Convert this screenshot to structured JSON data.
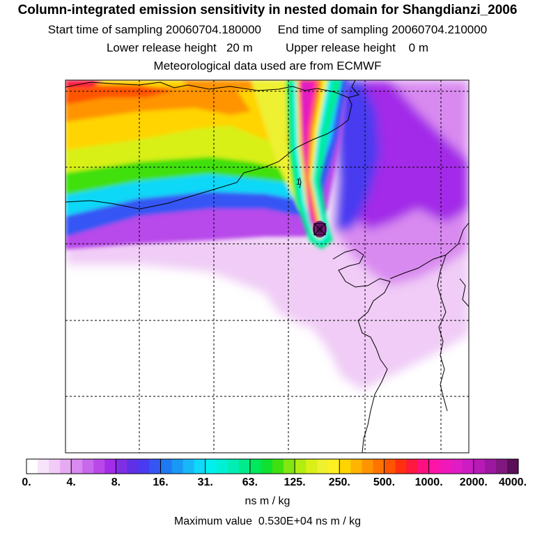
{
  "chart_data": {
    "type": "heatmap",
    "title": "Column-integrated emission sensitivity in nested domain for Shangdianzi_2006",
    "subtitle_lines": [
      "Start time of sampling 20060704.180000     End time of sampling 20060704.210000",
      "Lower release height   20 m          Upper release height    0 m",
      "Meteorological data used are from ECMWF"
    ],
    "colorbar": {
      "tick_labels": [
        "0.",
        "4.",
        "8.",
        "16.",
        "31.",
        "63.",
        "125.",
        "250.",
        "500.",
        "1000.",
        "2000.",
        "4000."
      ],
      "unit": "ns m / kg",
      "colors": [
        "#ffffff",
        "#f8e4fa",
        "#f0ccf6",
        "#e6aaf2",
        "#d98af0",
        "#c868ec",
        "#b848ea",
        "#a32ce8",
        "#7f2ee4",
        "#6030e6",
        "#4a3af0",
        "#3656f4",
        "#1f7af2",
        "#1a98f6",
        "#18b8f8",
        "#10d8f8",
        "#00f0f0",
        "#00f0d6",
        "#00eeb4",
        "#00ec8c",
        "#00e85c",
        "#10e030",
        "#40e010",
        "#80e810",
        "#b0ee10",
        "#d8f018",
        "#eef030",
        "#fff020",
        "#ffd400",
        "#ffb400",
        "#ff9400",
        "#ff7400",
        "#ff5400",
        "#ff3010",
        "#ff1840",
        "#ff1080",
        "#ff14a8",
        "#f018b8",
        "#e01cc4",
        "#cc1cc4",
        "#b81ab8",
        "#9c18a0",
        "#801880",
        "#5a1058"
      ]
    },
    "maximum_value_text": "Maximum value  0.530E+04 ns m / kg",
    "source_marker": "Shangdianzi",
    "contour_label": "1",
    "grid": true
  }
}
